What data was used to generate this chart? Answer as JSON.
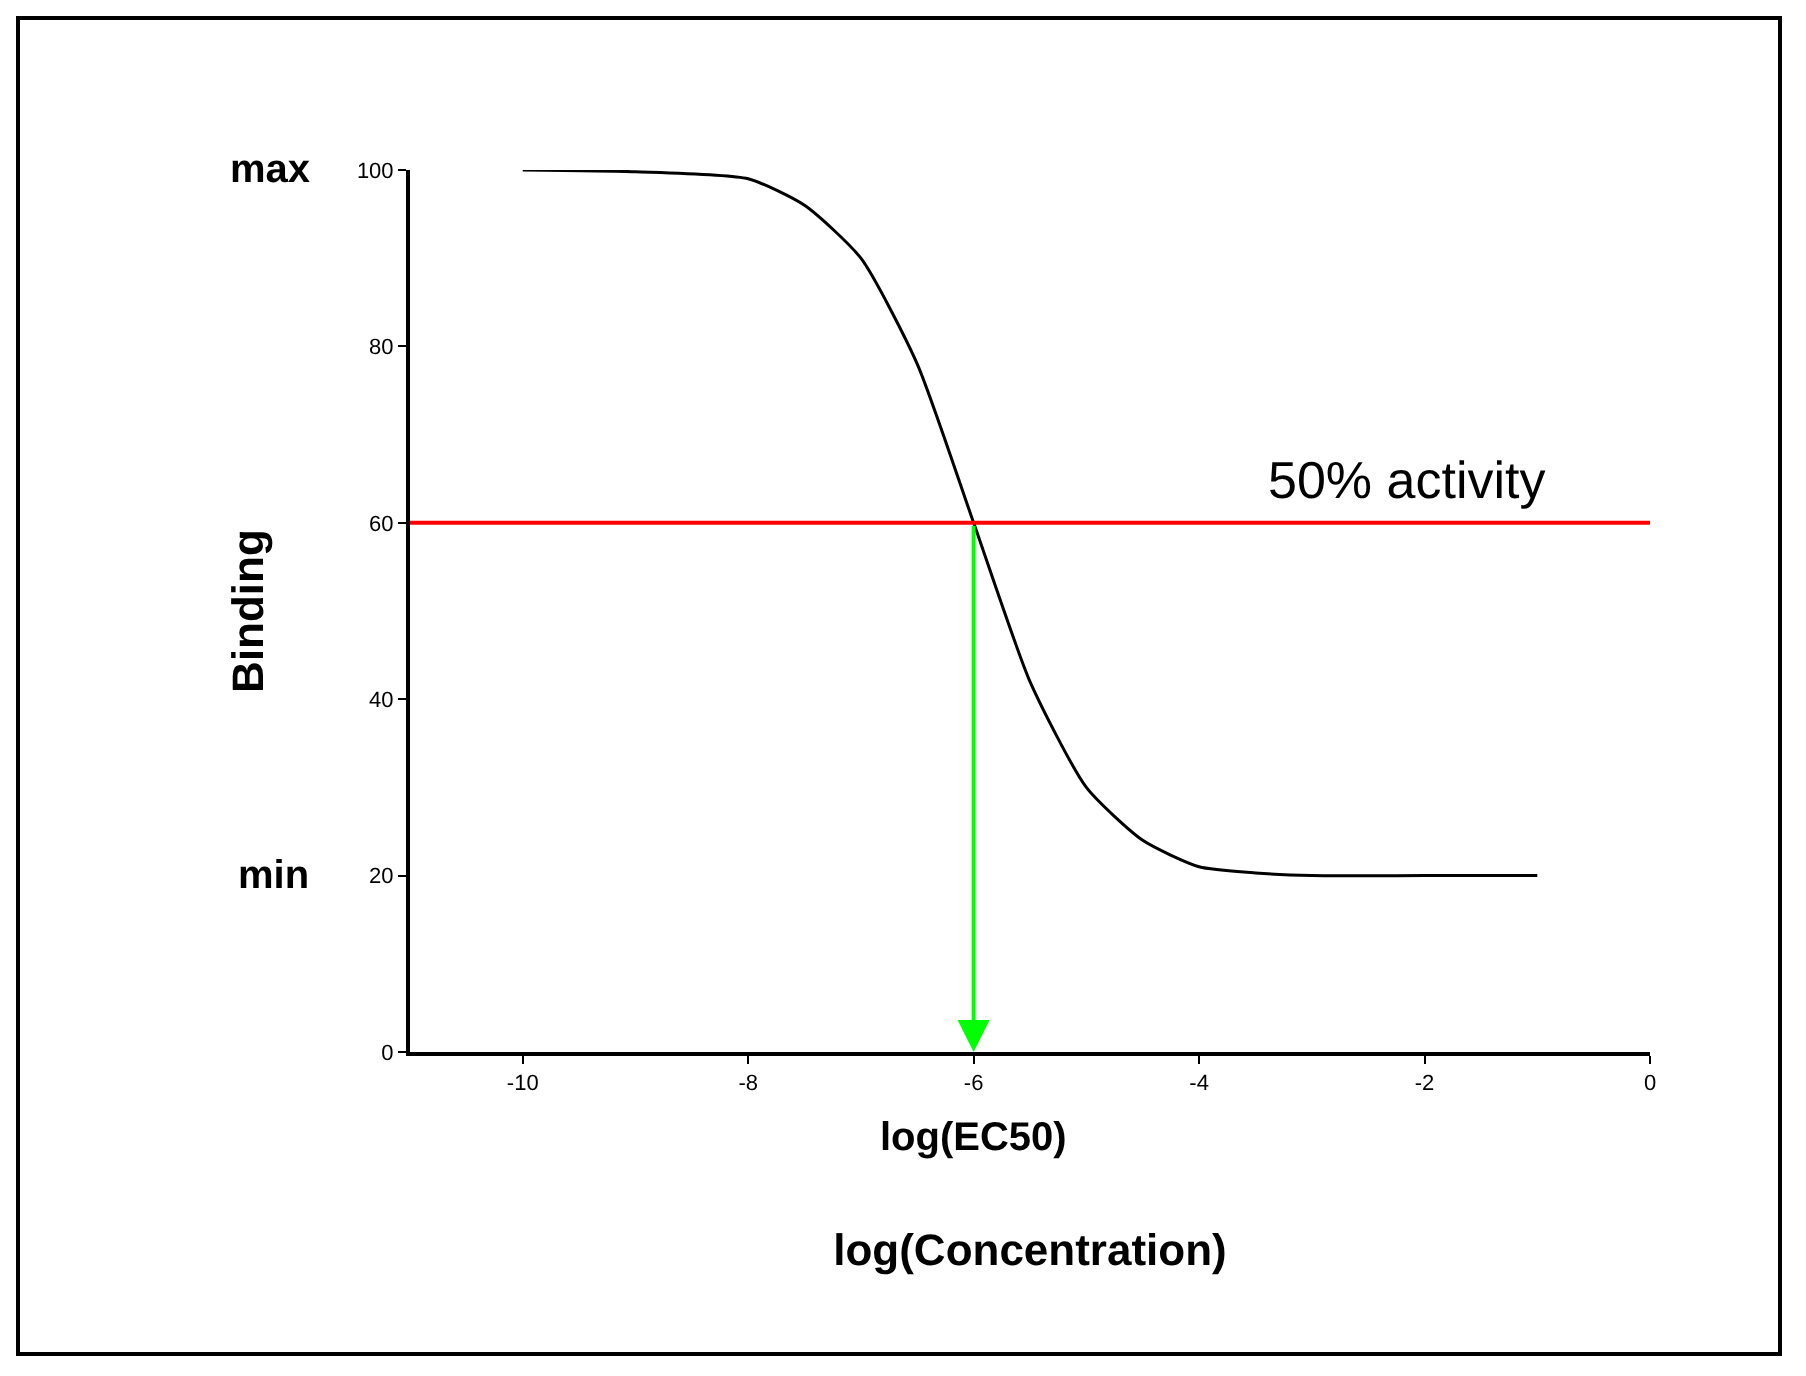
{
  "chart_data": {
    "type": "line",
    "xlabel": "log(Concentration)",
    "ylabel": "Binding",
    "x": [
      -10,
      -9,
      -8,
      -7.5,
      -7,
      -6.5,
      -6,
      -5.5,
      -5,
      -4.5,
      -4,
      -3.5,
      -3,
      -2,
      -1
    ],
    "series": [
      {
        "color": "#000000",
        "values": [
          100,
          99.8,
          99,
          96,
          90,
          78,
          60,
          42,
          30,
          24,
          21,
          20.3,
          20,
          20,
          20
        ]
      }
    ],
    "xlim": [
      -11,
      0
    ],
    "xticks": [
      -10,
      -8,
      -6,
      -4,
      -2,
      0
    ],
    "ylim": [
      0,
      100
    ],
    "yticks": [
      0,
      20,
      40,
      60,
      80,
      100
    ],
    "marker": "none",
    "line_style": "solid",
    "ref_lines": [
      {
        "axis": "y",
        "value": 60,
        "label": "50% activity",
        "color": "#ff0000"
      },
      {
        "axis": "x",
        "value": -6,
        "label": "log(EC50)",
        "color": "#00ff00"
      }
    ],
    "annotations": [
      "max",
      "min"
    ]
  }
}
